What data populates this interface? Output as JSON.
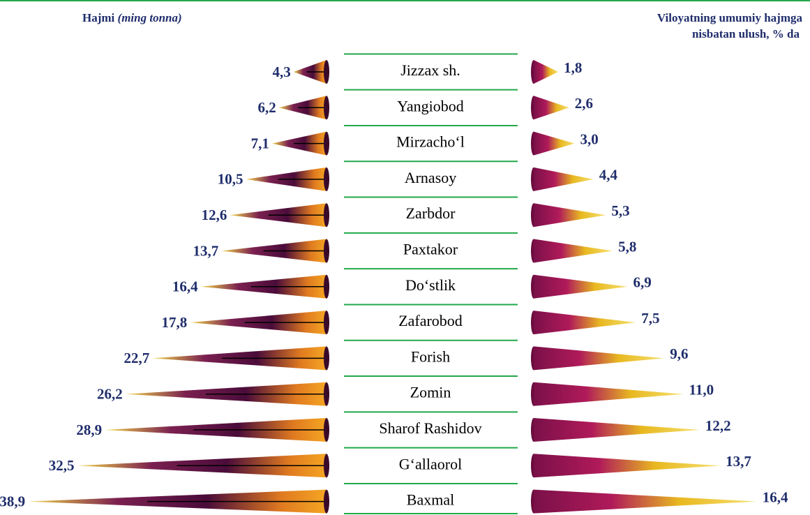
{
  "chart_data": {
    "type": "butterfly-cone",
    "left_header": [
      "Hajmi",
      "(ming tonna)"
    ],
    "right_header": [
      "Viloyatning umumiy hajmga",
      "nisbatan ulush, % da"
    ],
    "categories": [
      "Jizzax sh.",
      "Yangiobod",
      "Mirzacho‘l",
      "Arnasoy",
      "Zarbdor",
      "Paxtakor",
      "Do‘stlik",
      "Zafarobod",
      "Forish",
      "Zomin",
      "Sharof Rashidov",
      "G‘allaorol",
      "Baxmal"
    ],
    "series": [
      {
        "values": [
          4.3,
          6.2,
          7.1,
          10.5,
          12.6,
          13.7,
          16.4,
          17.8,
          22.7,
          26.2,
          28.9,
          32.5,
          38.9
        ],
        "value_labels": [
          "4,3",
          "6,2",
          "7,1",
          "10,5",
          "12,6",
          "13,7",
          "16,4",
          "17,8",
          "22,7",
          "26,2",
          "28,9",
          "32,5",
          "38,9"
        ],
        "color": "#5a1040"
      },
      {
        "values": [
          1.8,
          2.6,
          3.0,
          4.4,
          5.3,
          5.8,
          6.9,
          7.5,
          9.6,
          11.0,
          12.2,
          13.7,
          16.4
        ],
        "value_labels": [
          "1,8",
          "2,6",
          "3,0",
          "4,4",
          "5,3",
          "5,8",
          "6,9",
          "7,5",
          "9,6",
          "11,0",
          "12,2",
          "13,7",
          "16,4"
        ],
        "color": "#9c1a5c"
      }
    ]
  }
}
